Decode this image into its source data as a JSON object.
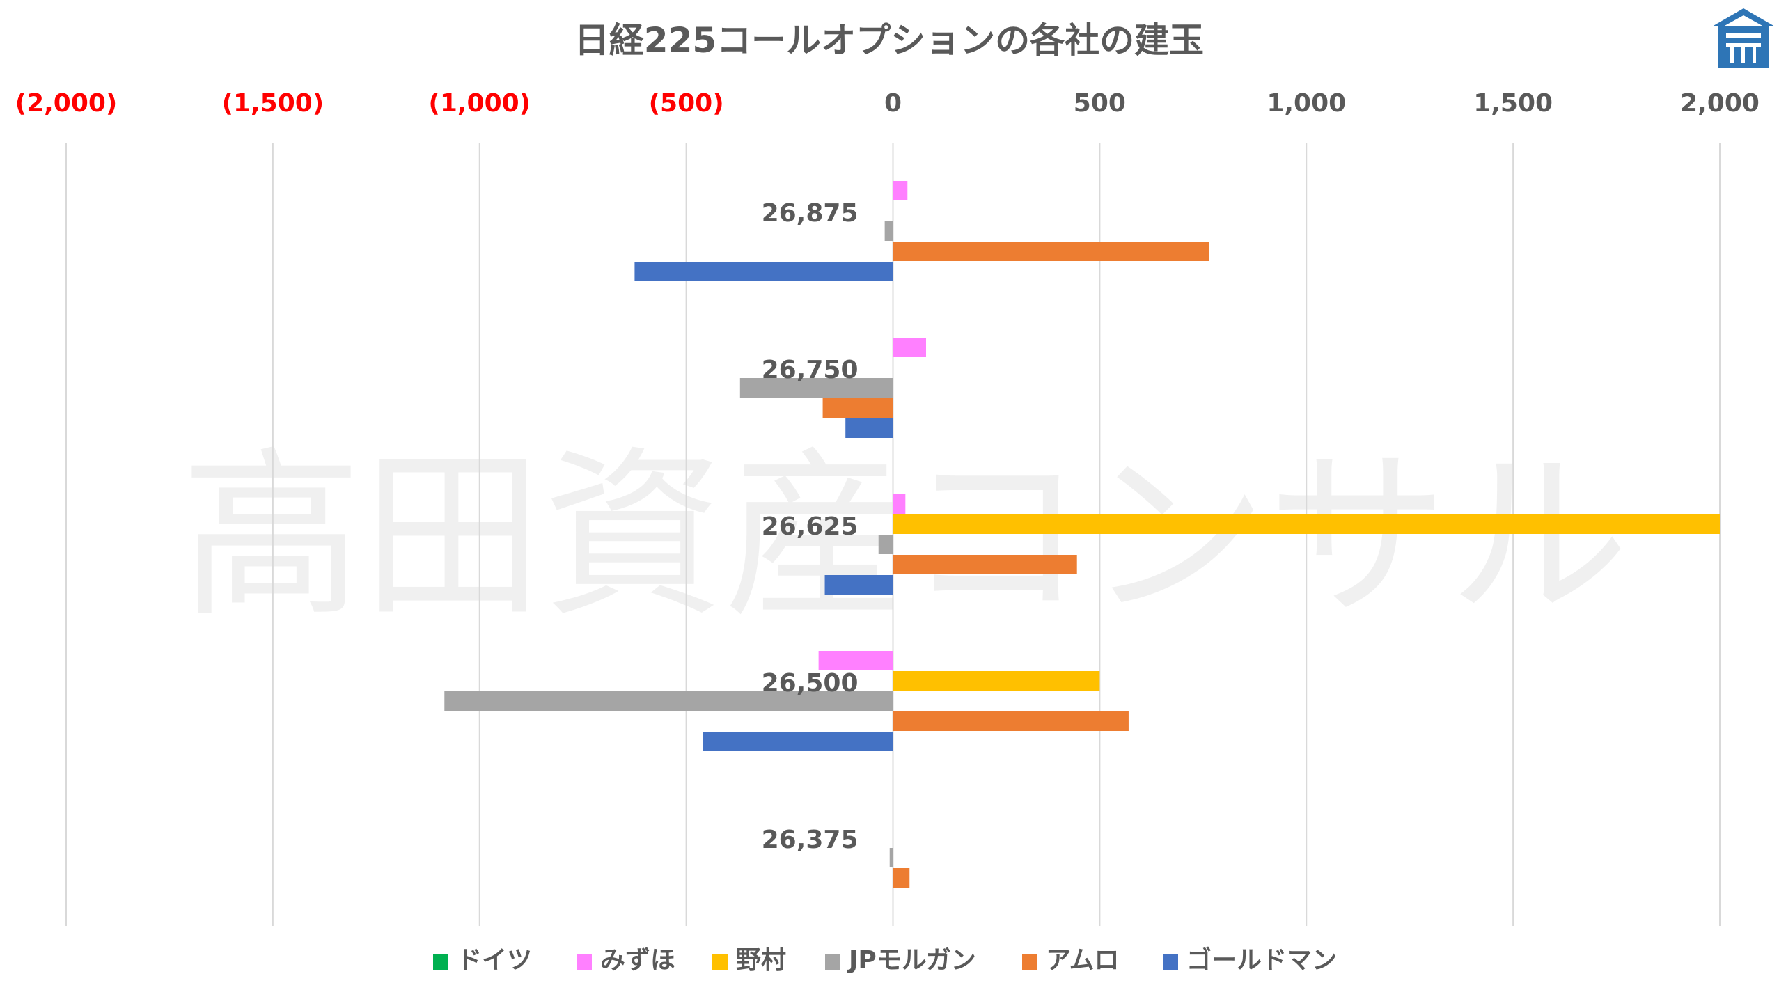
{
  "chart_data": {
    "type": "bar",
    "orientation": "horizontal",
    "title": "日経225コールオプションの各社の建玉",
    "xlim": [
      -2000,
      2000
    ],
    "x_ticks": [
      -2000,
      -1500,
      -1000,
      -500,
      0,
      500,
      1000,
      1500,
      2000
    ],
    "x_tick_labels": [
      "(2,000)",
      "(1,500)",
      "(1,000)",
      "(500)",
      "0",
      "500",
      "1,000",
      "1,500",
      "2,000"
    ],
    "negative_tick_color": "#FF0000",
    "positive_tick_color": "#595959",
    "x_axis_position": "top",
    "grid": true,
    "legend_position": "bottom",
    "categories": [
      "26,875",
      "26,750",
      "26,625",
      "26,500",
      "26,375"
    ],
    "series": [
      {
        "name": "ドイツ",
        "color": "#00B050",
        "values": [
          0,
          0,
          0,
          0,
          0
        ]
      },
      {
        "name": "みずほ",
        "color": "#FF80FF",
        "values": [
          35,
          80,
          30,
          -180,
          0
        ]
      },
      {
        "name": "野村",
        "color": "#FFC000",
        "values": [
          0,
          0,
          2000,
          500,
          0
        ]
      },
      {
        "name": "JPモルガン",
        "color": "#A5A5A5",
        "values": [
          -20,
          -370,
          -35,
          -1085,
          -8
        ]
      },
      {
        "name": "アムロ",
        "color": "#ED7D31",
        "values": [
          765,
          -170,
          445,
          570,
          40
        ]
      },
      {
        "name": "ゴールドマン",
        "color": "#4472C4",
        "values": [
          -625,
          -115,
          -165,
          -460,
          0
        ]
      }
    ]
  },
  "watermark": "高田資産コンサル",
  "logo": {
    "name": "takata-logo",
    "color": "#2E75B6"
  }
}
